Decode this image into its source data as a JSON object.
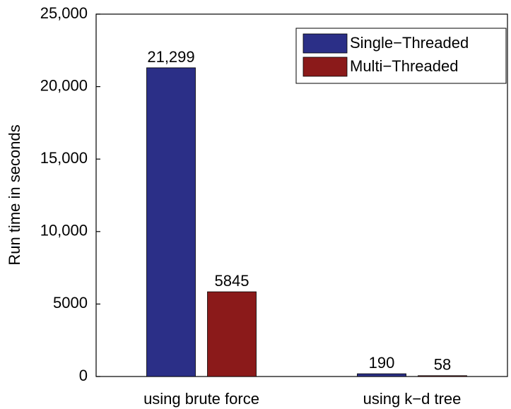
{
  "chart_data": {
    "type": "bar",
    "ylabel": "Run time in seconds",
    "categories": [
      "using brute force",
      "using k−d tree"
    ],
    "series": [
      {
        "name": "Single−Threaded",
        "color": "#2b2f87",
        "values": [
          21299,
          190
        ],
        "value_labels": [
          "21,299",
          "190"
        ]
      },
      {
        "name": "Multi−Threaded",
        "color": "#8b1a1a",
        "values": [
          5845,
          58
        ]
      }
    ],
    "ylim": [
      0,
      25000
    ],
    "yticks": [
      0,
      5000,
      {
        "value": 10000,
        "label": "10,000"
      },
      {
        "value": 15000,
        "label": "15,000"
      },
      {
        "value": 20000,
        "label": "20,000"
      },
      {
        "value": 25000,
        "label": "25,000"
      }
    ],
    "legend": "upper right"
  }
}
